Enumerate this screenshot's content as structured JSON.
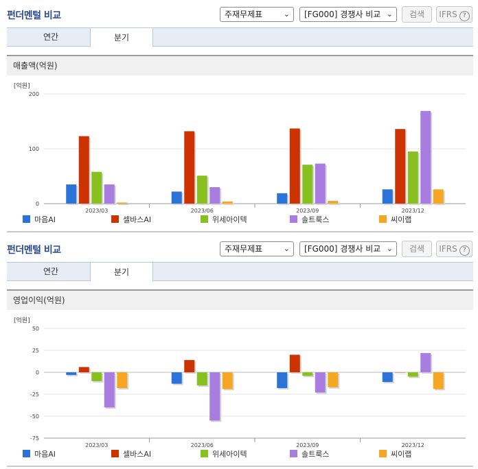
{
  "panels": [
    {
      "title": "펀더멘털 비교",
      "select_statement": "주재무제표",
      "select_peer": "[FG000] 경쟁사 비교",
      "search_label": "검색",
      "ifrs_label": "IFRS",
      "help_glyph": "?",
      "tabs": [
        {
          "label": "연간",
          "active": false
        },
        {
          "label": "분기",
          "active": true
        }
      ],
      "metric_title": "매출액(억원)",
      "unit_label": "[억원]"
    },
    {
      "title": "펀더멘털 비교",
      "select_statement": "주재무제표",
      "select_peer": "[FG000] 경쟁사 비교",
      "search_label": "검색",
      "ifrs_label": "IFRS",
      "help_glyph": "?",
      "tabs": [
        {
          "label": "연간",
          "active": false
        },
        {
          "label": "분기",
          "active": true
        }
      ],
      "metric_title": "영업이익(억원)",
      "unit_label": "[억원]"
    }
  ],
  "chart_data": [
    {
      "type": "bar",
      "categories": [
        "2023/03",
        "2023/06",
        "2023/09",
        "2023/12"
      ],
      "series": [
        {
          "name": "마음AI",
          "color": "#2b72d9",
          "values": [
            35,
            22,
            19,
            26
          ]
        },
        {
          "name": "셀바스AI",
          "color": "#cc3300",
          "values": [
            123,
            132,
            137,
            136
          ]
        },
        {
          "name": "위세아이텍",
          "color": "#88c020",
          "values": [
            58,
            51,
            71,
            95
          ]
        },
        {
          "name": "솔트룩스",
          "color": "#a87ddf",
          "values": [
            35,
            30,
            73,
            169
          ]
        },
        {
          "name": "씨이랩",
          "color": "#f5a623",
          "values": [
            2,
            4,
            5,
            26
          ]
        }
      ],
      "ylim": [
        0,
        200
      ],
      "yticks": [
        0,
        100,
        200
      ],
      "ytick_labels": [
        "0",
        "100",
        "200"
      ],
      "ylabel": "[억원]",
      "grid": true,
      "legend": "bottom"
    },
    {
      "type": "bar",
      "categories": [
        "2023/03",
        "2023/06",
        "2023/09",
        "2023/12"
      ],
      "series": [
        {
          "name": "마음AI",
          "color": "#2b72d9",
          "values": [
            -3,
            -13,
            -18,
            -11
          ]
        },
        {
          "name": "셀바스AI",
          "color": "#cc3300",
          "values": [
            6,
            14,
            20,
            0
          ]
        },
        {
          "name": "위세아이텍",
          "color": "#88c020",
          "values": [
            -10,
            -15,
            -4,
            -5
          ]
        },
        {
          "name": "솔트룩스",
          "color": "#a87ddf",
          "values": [
            -40,
            -55,
            -23,
            22
          ]
        },
        {
          "name": "씨이랩",
          "color": "#f5a623",
          "values": [
            -18,
            -19,
            -17,
            -19
          ]
        }
      ],
      "ylim": [
        -75,
        50
      ],
      "yticks": [
        -75,
        -50,
        -25,
        0,
        25,
        50
      ],
      "ytick_labels": [
        "-75",
        "-50",
        "-25",
        "0",
        "25",
        "50"
      ],
      "ylabel": "[억원]",
      "grid": true,
      "legend": "bottom"
    }
  ]
}
